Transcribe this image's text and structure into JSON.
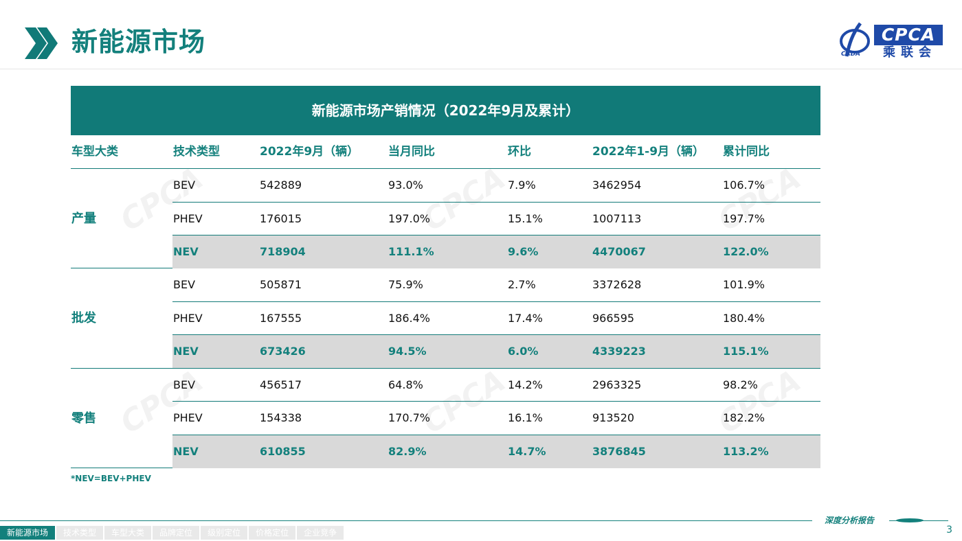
{
  "header": {
    "title": "新能源市场",
    "logo_text": "CPCA",
    "logo_cn": "乘联会",
    "logo_sub": "CADA"
  },
  "table": {
    "title": "新能源市场产销情况（2022年9月及累计）",
    "columns": [
      "车型大类",
      "技术类型",
      "2022年9月（辆）",
      "当月同比",
      "环比",
      "2022年1-9月（辆）",
      "累计同比"
    ],
    "groups": [
      {
        "category": "产量",
        "rows": [
          [
            "BEV",
            "542889",
            "93.0%",
            "7.9%",
            "3462954",
            "106.7%"
          ],
          [
            "PHEV",
            "176015",
            "197.0%",
            "15.1%",
            "1007113",
            "197.7%"
          ],
          [
            "NEV",
            "718904",
            "111.1%",
            "9.6%",
            "4470067",
            "122.0%"
          ]
        ]
      },
      {
        "category": "批发",
        "rows": [
          [
            "BEV",
            "505871",
            "75.9%",
            "2.7%",
            "3372628",
            "101.9%"
          ],
          [
            "PHEV",
            "167555",
            "186.4%",
            "17.4%",
            "966595",
            "180.4%"
          ],
          [
            "NEV",
            "673426",
            "94.5%",
            "6.0%",
            "4339223",
            "115.1%"
          ]
        ]
      },
      {
        "category": "零售",
        "rows": [
          [
            "BEV",
            "456517",
            "64.8%",
            "14.2%",
            "2963325",
            "98.2%"
          ],
          [
            "PHEV",
            "154338",
            "170.7%",
            "16.1%",
            "913520",
            "182.2%"
          ],
          [
            "NEV",
            "610855",
            "82.9%",
            "14.7%",
            "3876845",
            "113.2%"
          ]
        ]
      }
    ],
    "note": "*NEV=BEV+PHEV"
  },
  "footer": {
    "report_label": "深度分析报告",
    "nav": [
      "新能源市场",
      "技术类型",
      "车型大类",
      "品牌定位",
      "级别定位",
      "价格定位",
      "企业竞争"
    ],
    "active_nav": 0,
    "page_number": "3"
  },
  "colors": {
    "accent": "#117a78",
    "nev_row_bg": "#d9d9d9",
    "logo_blue": "#1f4aa8"
  }
}
